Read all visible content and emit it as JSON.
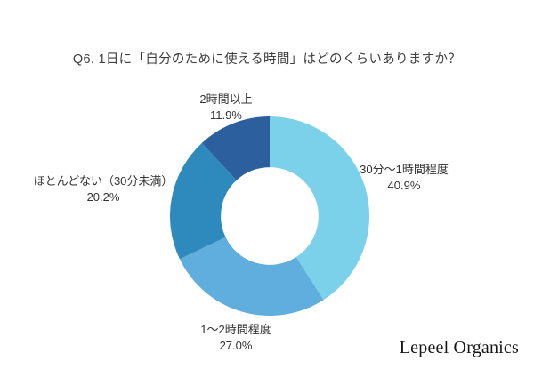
{
  "chart_data": {
    "type": "pie",
    "subtype": "donut",
    "title": "Q6. 1日に「自分のために使える時間」はどのくらいありますか？",
    "direction": "clockwise",
    "start_angle_deg": 0,
    "inner_radius_ratio": 0.49,
    "legend_position": "none",
    "segments": [
      {
        "label": "30分〜1時間程度",
        "value": 40.9,
        "percent_label": "40.9%",
        "color": "#7BD1EA"
      },
      {
        "label": "1〜2時間程度",
        "value": 27.0,
        "percent_label": "27.0%",
        "color": "#5FAEDD"
      },
      {
        "label": "ほとんどない（30分未満）",
        "value": 20.2,
        "percent_label": "20.2%",
        "color": "#2E89BC"
      },
      {
        "label": "2時間以上",
        "value": 11.9,
        "percent_label": "11.9%",
        "color": "#2C5F9D"
      }
    ]
  },
  "footer": {
    "brand": "Lepeel Organics"
  }
}
